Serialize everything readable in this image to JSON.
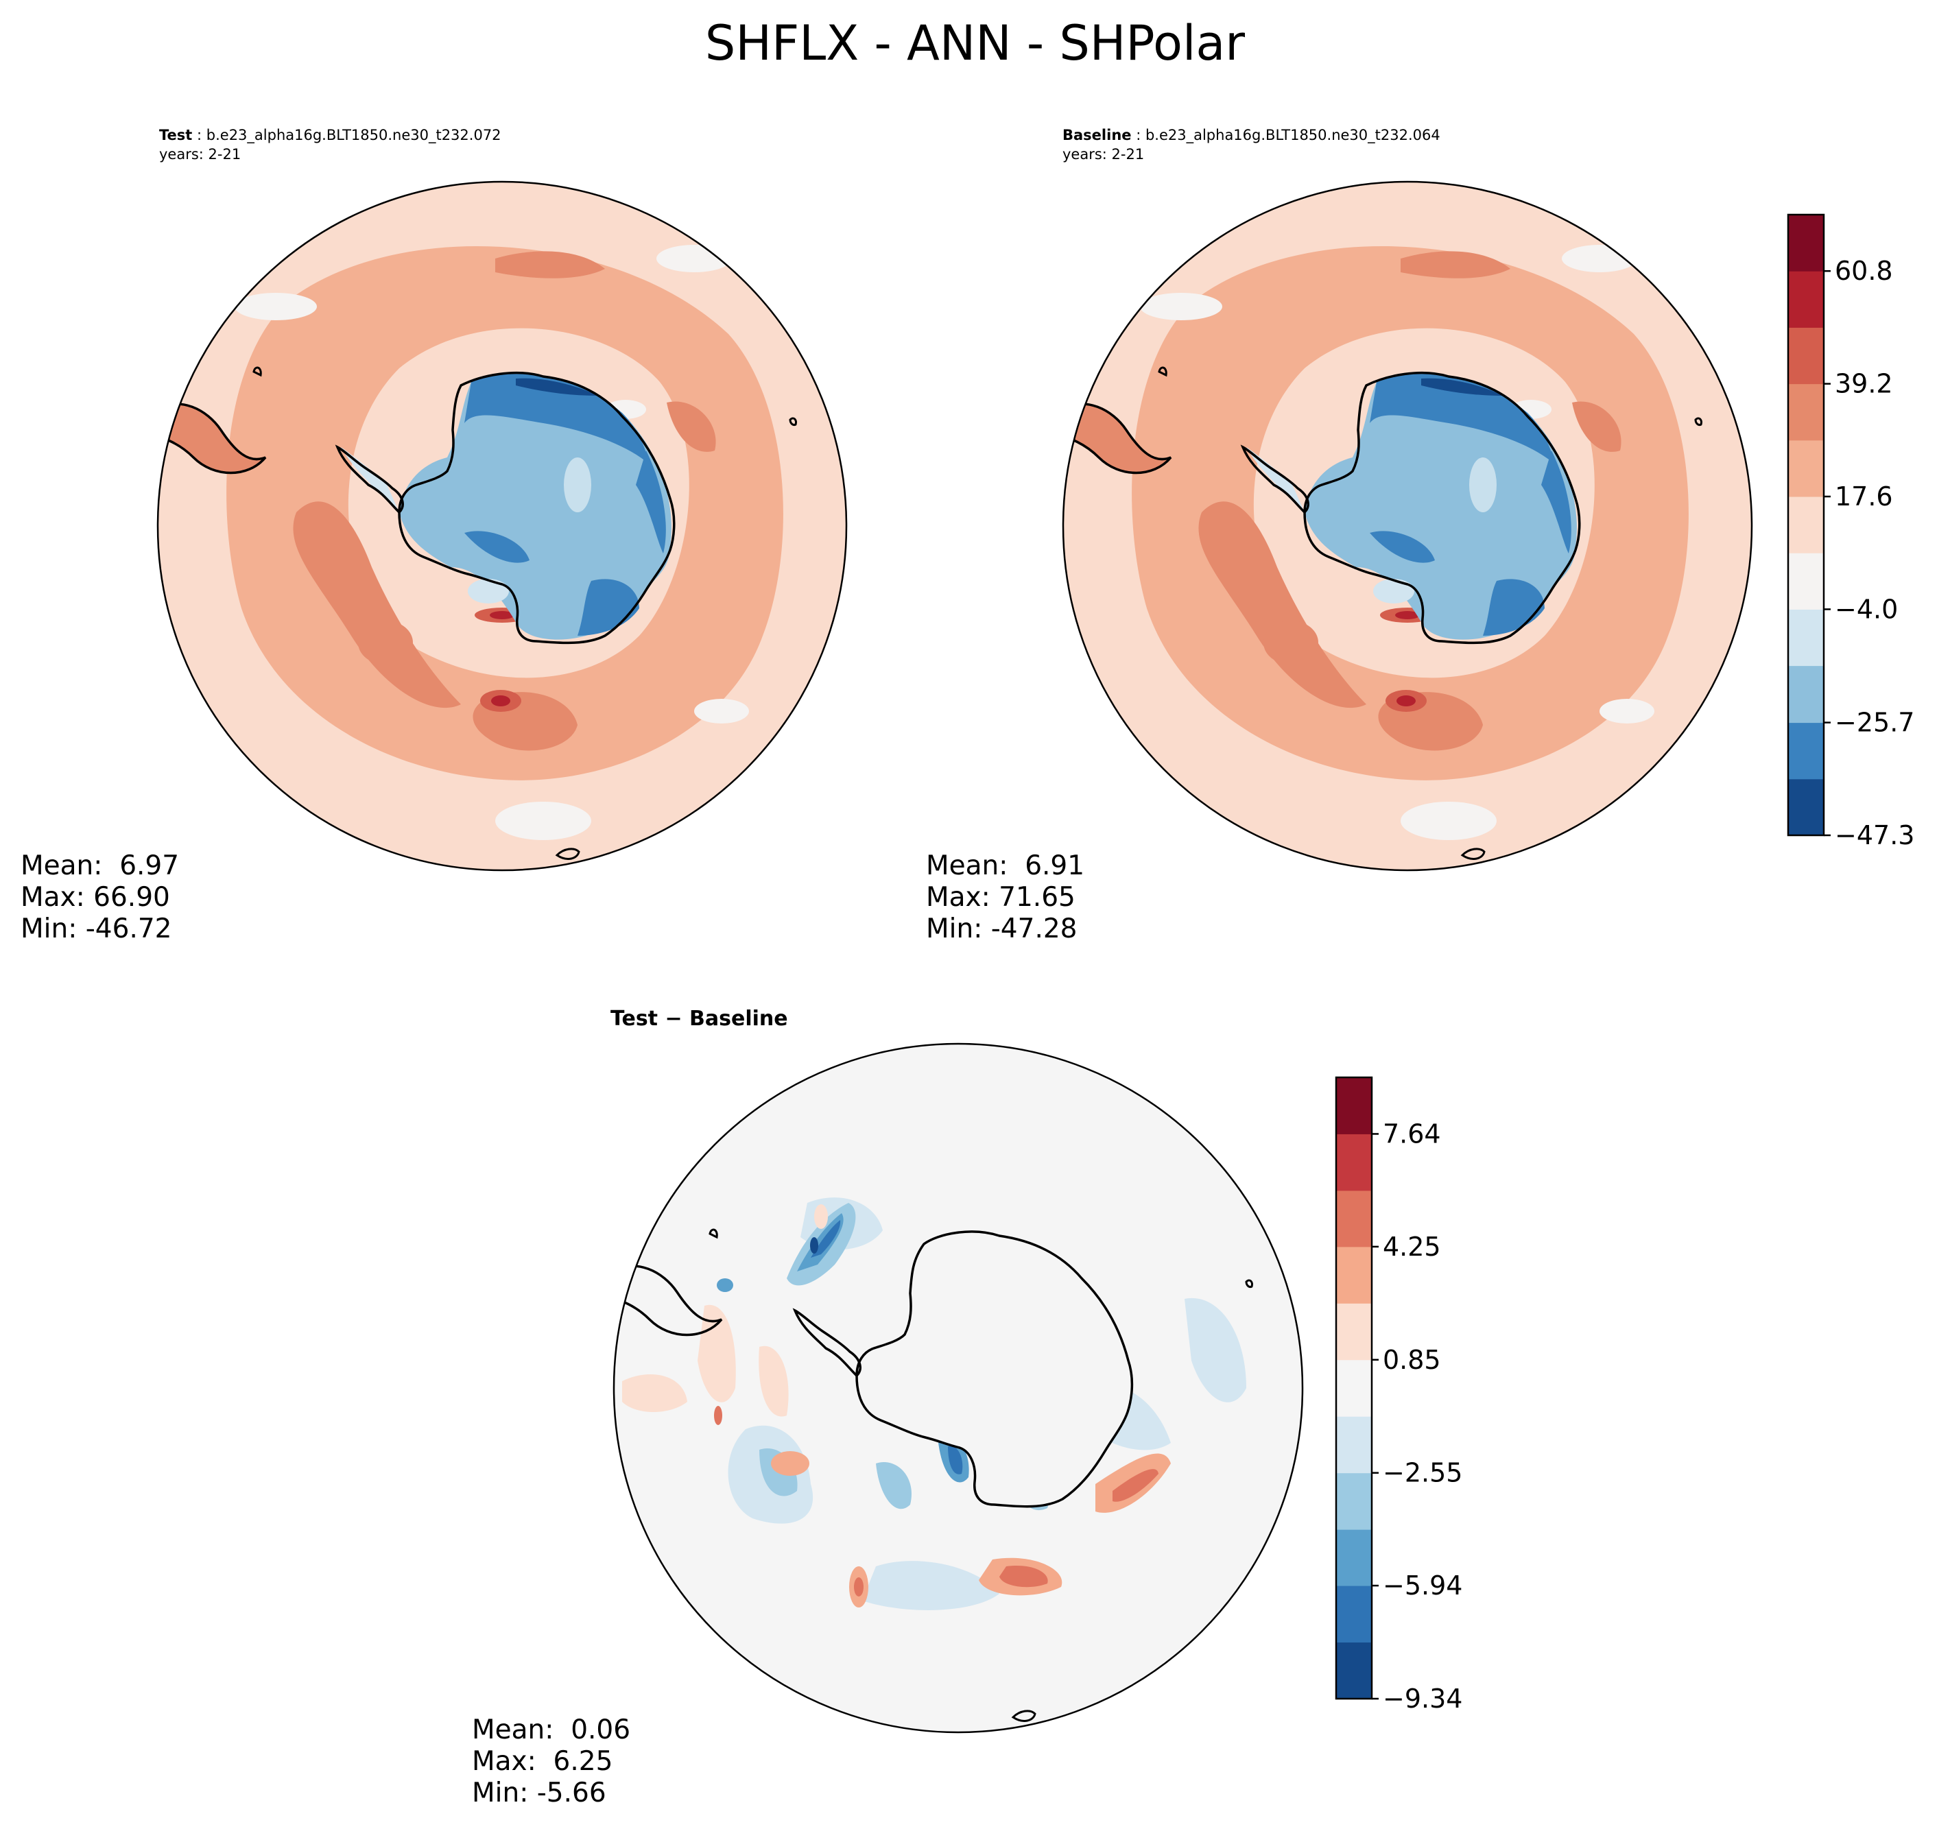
{
  "title": "SHFLX - ANN - SHPolar",
  "panels": {
    "test": {
      "label": "Test",
      "case": "b.e23_alpha16g.BLT1850.ne30_t232.072",
      "years": "years: 2-21",
      "mean": "Mean:  6.97",
      "max": "Max: 66.90",
      "min": "Min: -46.72"
    },
    "baseline": {
      "label": "Baseline",
      "case": "b.e23_alpha16g.BLT1850.ne30_t232.064",
      "years": "years: 2-21",
      "mean": "Mean:  6.91",
      "max": "Max: 71.65",
      "min": "Min: -47.28"
    },
    "diff": {
      "title": "Test − Baseline",
      "mean": "Mean:  0.06",
      "max": "Max:  6.25",
      "min": "Min: -5.66"
    }
  },
  "chart_data": [
    {
      "type": "heatmap",
      "projection": "south polar stereographic",
      "panels": [
        "Test",
        "Baseline"
      ],
      "colorbar": {
        "levels": [
          -47.3,
          -36.5,
          -25.7,
          -14.8,
          -4.0,
          6.8,
          17.6,
          28.4,
          39.2,
          50.0,
          60.8,
          71.6
        ],
        "tick_values": [
          -47.3,
          -25.7,
          -4.0,
          17.6,
          39.2,
          60.8
        ],
        "tick_labels": [
          "−47.3",
          "−25.7",
          "−4.0",
          "17.6",
          "39.2",
          "60.8"
        ],
        "colors": [
          "#154a8a",
          "#3a82bf",
          "#8ebfdc",
          "#d2e5f0",
          "#f5f3f2",
          "#fadccd",
          "#f3b092",
          "#e58a6c",
          "#d45e4d",
          "#b3212e",
          "#7f0a23"
        ]
      }
    },
    {
      "type": "heatmap",
      "projection": "south polar stereographic",
      "panels": [
        "Test − Baseline"
      ],
      "colorbar": {
        "levels": [
          -9.34,
          -7.64,
          -5.94,
          -4.25,
          -2.55,
          -0.85,
          0.85,
          2.55,
          4.25,
          5.94,
          7.64,
          9.34
        ],
        "tick_values": [
          -9.34,
          -5.94,
          -2.55,
          0.85,
          4.25,
          7.64
        ],
        "tick_labels": [
          "−9.34",
          "−5.94",
          "−2.55",
          "0.85",
          "4.25",
          "7.64"
        ],
        "colors": [
          "#154a8a",
          "#2f74b5",
          "#5aa0cc",
          "#9ccae2",
          "#d4e6f1",
          "#f5f5f5",
          "#fbdfd1",
          "#f4aa8b",
          "#e0745e",
          "#c4393e",
          "#800c23"
        ]
      }
    }
  ]
}
